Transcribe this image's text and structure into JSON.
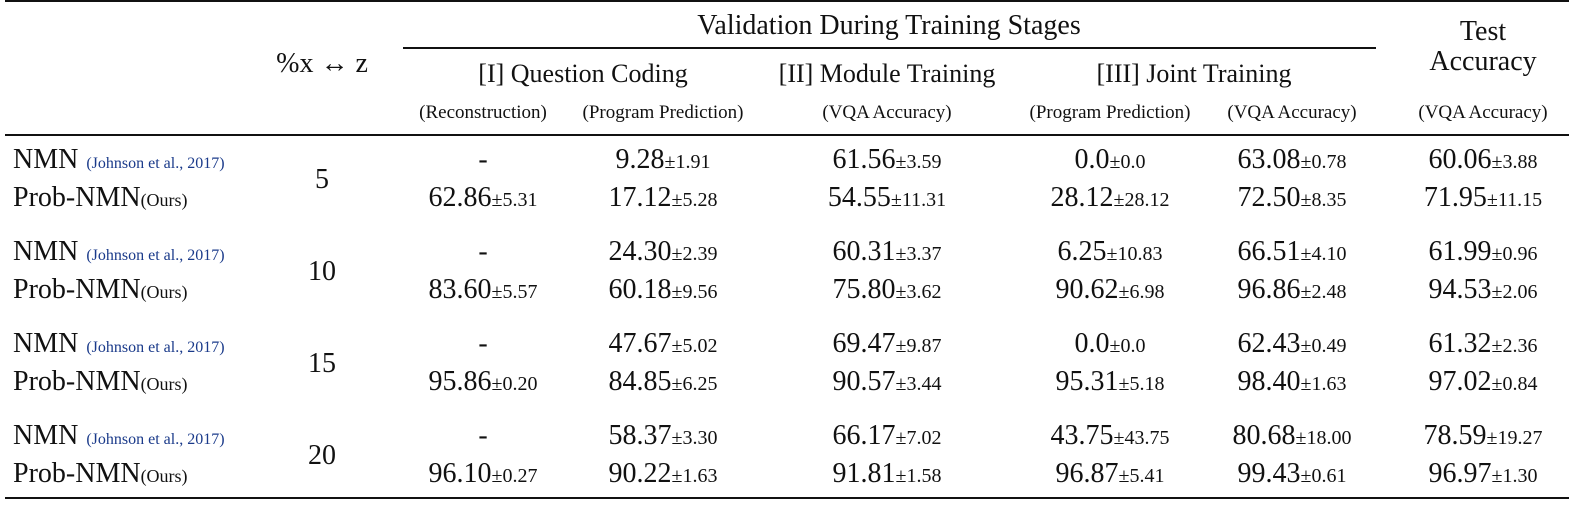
{
  "header": {
    "ratio_label": "%x ↔ z",
    "group_title": "Validation During Training Stages",
    "test_title_line1": "Test",
    "test_title_line2": "Accuracy",
    "stages": {
      "qc": "[I] Question Coding",
      "mt": "[II] Module Training",
      "jt": "[III] Joint Training"
    },
    "sub": {
      "recon": "(Reconstruction)",
      "prog1": "(Program Prediction)",
      "vqa1": "(VQA Accuracy)",
      "prog2": "(Program Prediction)",
      "vqa2": "(VQA Accuracy)",
      "vqa3": "(VQA Accuracy)"
    }
  },
  "groups": [
    {
      "pct": "5",
      "nmn": {
        "name": "NMN",
        "cite": "(Johnson et al., 2017)",
        "recon": "-",
        "prog1": [
          "9.28",
          "±1.91"
        ],
        "vqa1": [
          "61.56",
          "±3.59"
        ],
        "prog2": [
          "0.0",
          "±0.0"
        ],
        "vqa2": [
          "63.08",
          "±0.78"
        ],
        "test": [
          "60.06",
          "±3.88"
        ]
      },
      "prob": {
        "name": "Prob-NMN",
        "tag": "(Ours)",
        "recon": [
          "62.86",
          "±5.31"
        ],
        "prog1": [
          "17.12",
          "±5.28"
        ],
        "vqa1": [
          "54.55",
          "±11.31"
        ],
        "prog2": [
          "28.12",
          "±28.12"
        ],
        "vqa2": [
          "72.50",
          "±8.35"
        ],
        "test": [
          "71.95",
          "±11.15"
        ]
      }
    },
    {
      "pct": "10",
      "nmn": {
        "name": "NMN",
        "cite": "(Johnson et al., 2017)",
        "recon": "-",
        "prog1": [
          "24.30",
          "±2.39"
        ],
        "vqa1": [
          "60.31",
          "±3.37"
        ],
        "prog2": [
          "6.25",
          "±10.83"
        ],
        "vqa2": [
          "66.51",
          "±4.10"
        ],
        "test": [
          "61.99",
          "±0.96"
        ]
      },
      "prob": {
        "name": "Prob-NMN",
        "tag": "(Ours)",
        "recon": [
          "83.60",
          "±5.57"
        ],
        "prog1": [
          "60.18",
          "±9.56"
        ],
        "vqa1": [
          "75.80",
          "±3.62"
        ],
        "prog2": [
          "90.62",
          "±6.98"
        ],
        "vqa2": [
          "96.86",
          "±2.48"
        ],
        "test": [
          "94.53",
          "±2.06"
        ]
      }
    },
    {
      "pct": "15",
      "nmn": {
        "name": "NMN",
        "cite": "(Johnson et al., 2017)",
        "recon": "-",
        "prog1": [
          "47.67",
          "±5.02"
        ],
        "vqa1": [
          "69.47",
          "±9.87"
        ],
        "prog2": [
          "0.0",
          "±0.0"
        ],
        "vqa2": [
          "62.43",
          "±0.49"
        ],
        "test": [
          "61.32",
          "±2.36"
        ]
      },
      "prob": {
        "name": "Prob-NMN",
        "tag": "(Ours)",
        "recon": [
          "95.86",
          "±0.20"
        ],
        "prog1": [
          "84.85",
          "±6.25"
        ],
        "vqa1": [
          "90.57",
          "±3.44"
        ],
        "prog2": [
          "95.31",
          "±5.18"
        ],
        "vqa2": [
          "98.40",
          "±1.63"
        ],
        "test": [
          "97.02",
          "±0.84"
        ]
      }
    },
    {
      "pct": "20",
      "nmn": {
        "name": "NMN",
        "cite": "(Johnson et al., 2017)",
        "recon": "-",
        "prog1": [
          "58.37",
          "±3.30"
        ],
        "vqa1": [
          "66.17",
          "±7.02"
        ],
        "prog2": [
          "43.75",
          "±43.75"
        ],
        "vqa2": [
          "80.68",
          "±18.00"
        ],
        "test": [
          "78.59",
          "±19.27"
        ]
      },
      "prob": {
        "name": "Prob-NMN",
        "tag": "(Ours)",
        "recon": [
          "96.10",
          "±0.27"
        ],
        "prog1": [
          "90.22",
          "±1.63"
        ],
        "vqa1": [
          "91.81",
          "±1.58"
        ],
        "prog2": [
          "96.87",
          "±5.41"
        ],
        "vqa2": [
          "99.43",
          "±0.61"
        ],
        "test": [
          "96.97",
          "±1.30"
        ]
      }
    }
  ]
}
